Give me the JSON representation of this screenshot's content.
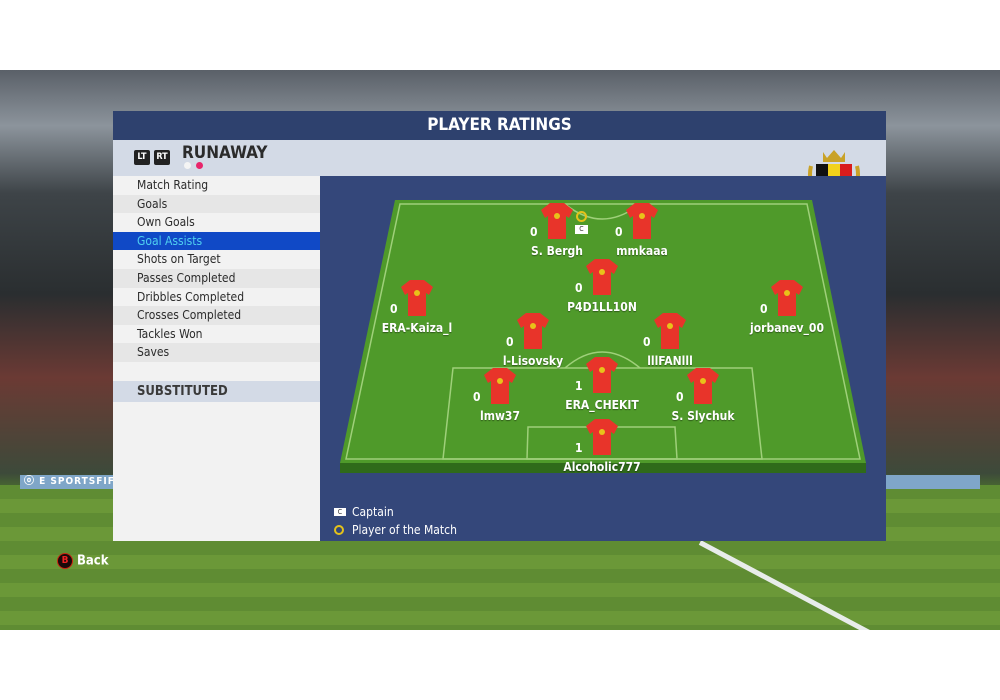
{
  "background": {
    "ad_text": "ⓞ E SPORTSFIFA"
  },
  "title": "PLAYER RATINGS",
  "header": {
    "lt": "LT",
    "rt": "RT",
    "team": "RUNAWAY",
    "page_dots": [
      false,
      true
    ]
  },
  "colors": {
    "title_bar": "#2e416e",
    "selected": "#1049c6",
    "selected_text": "#4fd0f0",
    "pitch_bg": "#34477a",
    "jersey": "#e8342a",
    "potm_dot": "#e8256b"
  },
  "categories": [
    "Match Rating",
    "Goals",
    "Own Goals",
    "Goal Assists",
    "Shots on Target",
    "Passes Completed",
    "Dribbles Completed",
    "Crosses Completed",
    "Tackles Won",
    "Saves"
  ],
  "selected_category": "Goal Assists",
  "substituted_label": "SUBSTITUTED",
  "players": [
    {
      "name": "S. Bergh",
      "value": "0",
      "captain": true,
      "potm": true
    },
    {
      "name": "mmkaaa",
      "value": "0"
    },
    {
      "name": "P4D1LL10N",
      "value": "0"
    },
    {
      "name": "ERA-Kaiza_l",
      "value": "0"
    },
    {
      "name": "jorbanev_00",
      "value": "0"
    },
    {
      "name": "l-Lisovsky",
      "value": "0"
    },
    {
      "name": "lllFANlll",
      "value": "0"
    },
    {
      "name": "ERA_CHEKIT",
      "value": "1"
    },
    {
      "name": "lmw37",
      "value": "0"
    },
    {
      "name": "S. Slychuk",
      "value": "0"
    },
    {
      "name": "Alcoholic777",
      "value": "1"
    }
  ],
  "captain_badge": "C",
  "legend": {
    "captain": "Captain",
    "potm": "Player of the Match"
  },
  "back": {
    "button": "B",
    "label": "Back"
  }
}
